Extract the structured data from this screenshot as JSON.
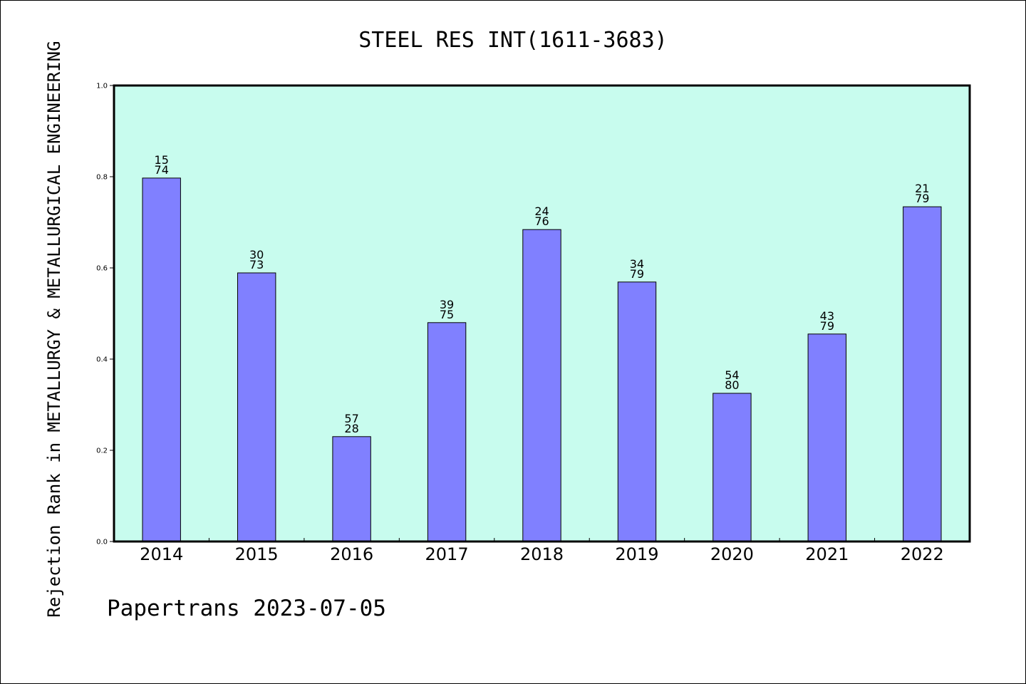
{
  "chart_data": {
    "type": "bar",
    "title": "STEEL RES INT(1611-3683)",
    "xlabel": "",
    "ylabel": "Rejection Rank in METALLURGY & METALLURGICAL ENGINEERING",
    "categories": [
      "2014",
      "2015",
      "2016",
      "2017",
      "2018",
      "2019",
      "2020",
      "2021",
      "2022"
    ],
    "values": [
      0.797,
      0.589,
      0.23,
      0.48,
      0.684,
      0.569,
      0.325,
      0.455,
      0.734
    ],
    "bar_labels_top": [
      "15",
      "30",
      "57",
      "39",
      "24",
      "34",
      "54",
      "43",
      "21"
    ],
    "bar_labels_bottom": [
      "74",
      "73",
      "28",
      "75",
      "76",
      "79",
      "80",
      "79",
      "79"
    ],
    "ylim": [
      0,
      1.0
    ],
    "yticks": [
      "0.0",
      "0.2",
      "0.4",
      "0.6",
      "0.8",
      "1.0"
    ],
    "grid": false,
    "colors": {
      "plot_background": "#c8fcee",
      "bar_fill": "#8080ff",
      "bar_edge": "#000000"
    }
  },
  "footer": {
    "text": "Papertrans 2023-07-05"
  }
}
